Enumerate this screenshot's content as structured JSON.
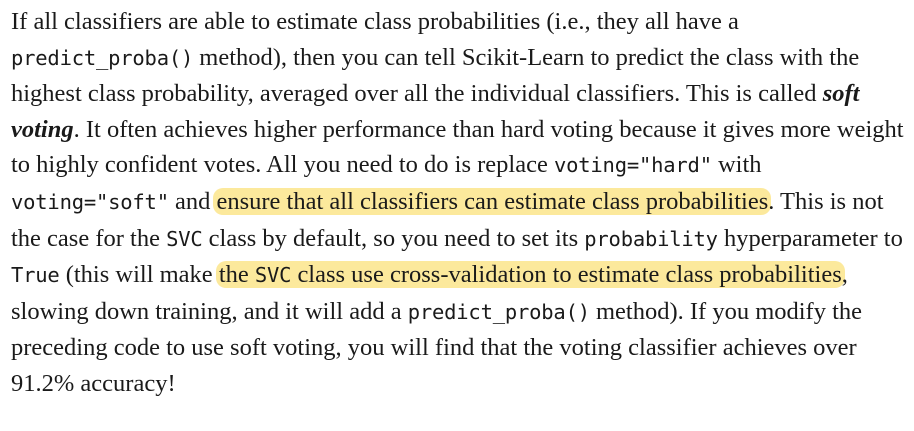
{
  "paragraph": {
    "t01": "If all classifiers are able to estimate class probabilities (i.e., they all have a ",
    "c01": "predict_proba()",
    "t02": " method), then you can tell Scikit-Learn to predict the class with the highest class probability, averaged over all the individual classifiers. This is called ",
    "em01": "soft voting",
    "t03": ". It often achieves higher performance than hard voting because it gives more weight to highly confident votes. All you need to do is replace ",
    "c02": "voting=\"hard\"",
    "t04": " with ",
    "c03": "voting=\"soft\"",
    "t05": " and ",
    "h01": "ensure that all classifiers can estimate class probabilities",
    "t06": ". This is not the case for the ",
    "c04": "SVC",
    "t07": " class by default, so you need to set its ",
    "c05": "probability",
    "t08": " hyperparameter to ",
    "c06": "True",
    "t09": " (this will make ",
    "h02a": "the ",
    "h02c": "SVC",
    "h02b": " class use cross-validation to estimate class probabilities",
    "t10": ", slowing down training, and it will add a ",
    "c07": "predict_proba()",
    "t11": " method). If you modify the preceding code to use soft voting, you will find that the voting classifier achieves over 91.2% accuracy!"
  },
  "colors": {
    "text": "#1a1a1a",
    "highlight": "#fce99c",
    "background": "#ffffff"
  }
}
